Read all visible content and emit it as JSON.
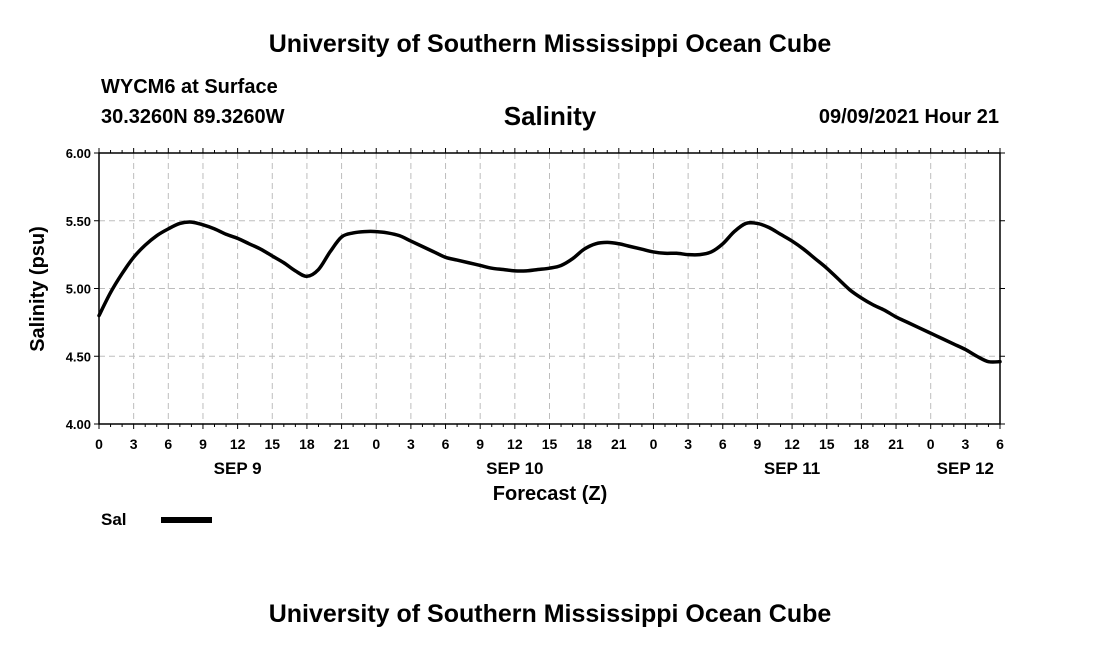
{
  "header": {
    "title": "University of Southern Mississippi Ocean Cube",
    "station": "WYCM6 at Surface",
    "location": "30.3260N  89.3260W",
    "datetime": "09/09/2021 Hour 21"
  },
  "footer": {
    "title": "University of Southern Mississippi Ocean Cube"
  },
  "chart_data": {
    "type": "line",
    "title": "Salinity",
    "xlabel": "Forecast (Z)",
    "ylabel": "Salinity (psu)",
    "xlim": [
      0,
      78
    ],
    "ylim": [
      4.0,
      6.0
    ],
    "y_ticks": [
      "4.00",
      "4.50",
      "5.00",
      "5.50",
      "6.00"
    ],
    "x_tick_labels": [
      "0",
      "3",
      "6",
      "9",
      "12",
      "15",
      "18",
      "21",
      "0",
      "3",
      "6",
      "9",
      "12",
      "15",
      "18",
      "21",
      "0",
      "3",
      "6",
      "9",
      "12",
      "15",
      "18",
      "21",
      "0",
      "3",
      "6"
    ],
    "date_labels": [
      {
        "label": "SEP 9",
        "x": 12
      },
      {
        "label": "SEP 10",
        "x": 36
      },
      {
        "label": "SEP 11",
        "x": 60
      },
      {
        "label": "SEP 12",
        "x": 75
      }
    ],
    "grid": true,
    "legend_position": "bottom-left",
    "series": [
      {
        "name": "Sal",
        "color": "#000000",
        "x": [
          0,
          1,
          2,
          3,
          4,
          5,
          6,
          7,
          8,
          9,
          10,
          11,
          12,
          13,
          14,
          15,
          16,
          17,
          18,
          19,
          20,
          21,
          22,
          23,
          24,
          25,
          26,
          27,
          28,
          29,
          30,
          31,
          32,
          33,
          34,
          35,
          36,
          37,
          38,
          39,
          40,
          41,
          42,
          43,
          44,
          45,
          46,
          47,
          48,
          49,
          50,
          51,
          52,
          53,
          54,
          55,
          56,
          57,
          58,
          59,
          60,
          61,
          62,
          63,
          64,
          65,
          66,
          67,
          68,
          69,
          70,
          71,
          72,
          73,
          74,
          75,
          76,
          77,
          78
        ],
        "y": [
          4.8,
          4.97,
          5.11,
          5.23,
          5.32,
          5.39,
          5.44,
          5.48,
          5.49,
          5.47,
          5.44,
          5.4,
          5.37,
          5.33,
          5.29,
          5.24,
          5.19,
          5.13,
          5.09,
          5.14,
          5.27,
          5.38,
          5.41,
          5.42,
          5.42,
          5.41,
          5.39,
          5.35,
          5.31,
          5.27,
          5.23,
          5.21,
          5.19,
          5.17,
          5.15,
          5.14,
          5.13,
          5.13,
          5.14,
          5.15,
          5.17,
          5.22,
          5.29,
          5.33,
          5.34,
          5.33,
          5.31,
          5.29,
          5.27,
          5.26,
          5.26,
          5.25,
          5.25,
          5.27,
          5.33,
          5.42,
          5.48,
          5.48,
          5.45,
          5.4,
          5.35,
          5.29,
          5.22,
          5.15,
          5.07,
          4.99,
          4.93,
          4.88,
          4.84,
          4.79,
          4.75,
          4.71,
          4.67,
          4.63,
          4.59,
          4.55,
          4.5,
          4.46,
          4.46
        ]
      }
    ]
  }
}
